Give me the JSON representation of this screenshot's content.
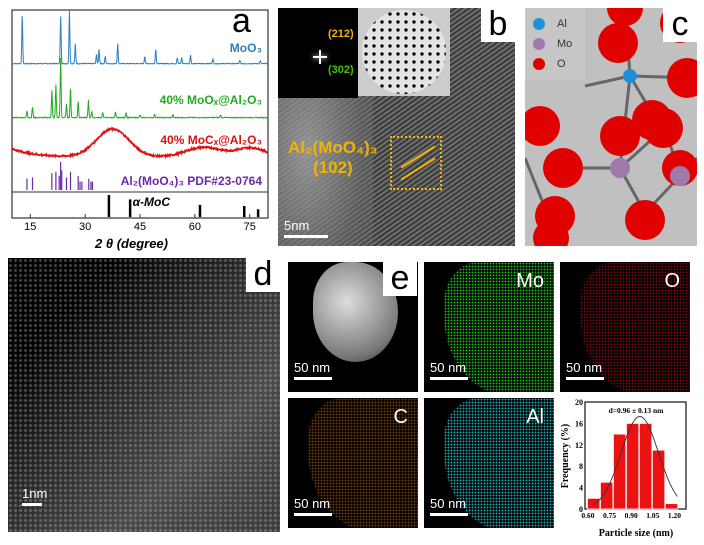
{
  "panels": {
    "a": {
      "letter": "a"
    },
    "b": {
      "letter": "b",
      "label_line1": "Al₂(MoO₄)₃",
      "label_line2": "(102)",
      "fft_spots": [
        "(212)",
        "(302)"
      ],
      "scale": "5nm",
      "colors": {
        "label": "#f0b400",
        "spot302": "#4cc000"
      }
    },
    "c": {
      "letter": "c",
      "legend": [
        {
          "name": "Al",
          "color": "#1e90d8"
        },
        {
          "name": "Mo",
          "color": "#a07aa8"
        },
        {
          "name": "O",
          "color": "#e00000"
        }
      ]
    },
    "d": {
      "letter": "d",
      "scale": "1nm"
    },
    "e": {
      "letter": "e",
      "tiles": [
        {
          "element": "",
          "scale": "50 nm",
          "color": "#ffffff"
        },
        {
          "element": "Mo",
          "scale": "50 nm",
          "color": "#22cc22"
        },
        {
          "element": "O",
          "scale": "50 nm",
          "color": "#d01010"
        },
        {
          "element": "C",
          "scale": "50 nm",
          "color": "#d07010"
        },
        {
          "element": "Al",
          "scale": "50 nm",
          "color": "#20b8c0"
        }
      ]
    }
  },
  "chart_data": [
    {
      "type": "line",
      "xlabel": "2 θ (degree)",
      "xlim": [
        10,
        80
      ],
      "xticks": [
        15,
        30,
        45,
        60,
        75
      ],
      "series": [
        {
          "name": "MoO₃",
          "color": "#2a7fc0",
          "peaks": [
            [
              12.8,
              100
            ],
            [
              23.3,
              95
            ],
            [
              25.7,
              110
            ],
            [
              27.3,
              40
            ],
            [
              33.1,
              20
            ],
            [
              33.8,
              30
            ],
            [
              35.5,
              15
            ],
            [
              38.9,
              40
            ],
            [
              46.3,
              15
            ],
            [
              49.3,
              30
            ],
            [
              55.2,
              12
            ],
            [
              56.4,
              12
            ],
            [
              58.8,
              18
            ],
            [
              64.9,
              10
            ],
            [
              72.3,
              6
            ],
            [
              77.9,
              6
            ]
          ]
        },
        {
          "name": "40% MoOₓ@Al₂O₃",
          "color": "#22aa22",
          "peaks": [
            [
              14.1,
              12
            ],
            [
              15.6,
              20
            ],
            [
              20.9,
              50
            ],
            [
              22.0,
              60
            ],
            [
              23.3,
              110
            ],
            [
              24.9,
              25
            ],
            [
              26.0,
              55
            ],
            [
              28.1,
              30
            ],
            [
              30.9,
              32
            ],
            [
              31.8,
              12
            ],
            [
              34.8,
              10
            ],
            [
              38.3,
              10
            ],
            [
              41.2,
              10
            ],
            [
              45,
              5
            ],
            [
              49,
              6
            ],
            [
              54,
              5
            ],
            [
              67,
              5
            ]
          ]
        },
        {
          "name": "40% MoCₓ@Al₂O₃",
          "color": "#dd1111",
          "broad": [
            [
              37.5,
              40,
              4.5
            ],
            [
              62.5,
              14,
              5
            ],
            [
              75.5,
              13,
              4
            ]
          ]
        }
      ],
      "references": [
        {
          "name": "Al₂(MoO₄)₃ PDF#23-0764",
          "color": "#6a2aa8",
          "sticks": [
            [
              14.1,
              40
            ],
            [
              15.6,
              45
            ],
            [
              20.9,
              60
            ],
            [
              22.0,
              65
            ],
            [
              22.9,
              50
            ],
            [
              23.3,
              100
            ],
            [
              23.6,
              70
            ],
            [
              24.9,
              45
            ],
            [
              26.0,
              65
            ],
            [
              28.1,
              50
            ],
            [
              28.6,
              30
            ],
            [
              29.1,
              30
            ],
            [
              31.0,
              40
            ],
            [
              31.6,
              30
            ],
            [
              32.0,
              30
            ]
          ]
        },
        {
          "name": "α-MoC",
          "color": "#000000",
          "sticks": [
            [
              36.5,
              100
            ],
            [
              42.3,
              80
            ],
            [
              61.4,
              55
            ],
            [
              73.5,
              50
            ],
            [
              77.3,
              35
            ]
          ]
        }
      ]
    },
    {
      "type": "bar",
      "title": "d=0.96 ± 0.13 nm",
      "xlabel": "Particle size (nm)",
      "ylabel": "Frequency (%)",
      "xticks": [
        "0.60",
        "0.75",
        "0.90",
        "1.05",
        "1.20"
      ],
      "yticks": [
        0,
        4,
        8,
        12,
        16,
        20
      ],
      "ylim": [
        0,
        20
      ],
      "bin_centers": [
        0.64,
        0.73,
        0.82,
        0.91,
        1.0,
        1.09,
        1.18
      ],
      "values": [
        2,
        5,
        14,
        16,
        16,
        11,
        1
      ],
      "fit": "gaussian",
      "bar_color": "#ee1111"
    }
  ]
}
